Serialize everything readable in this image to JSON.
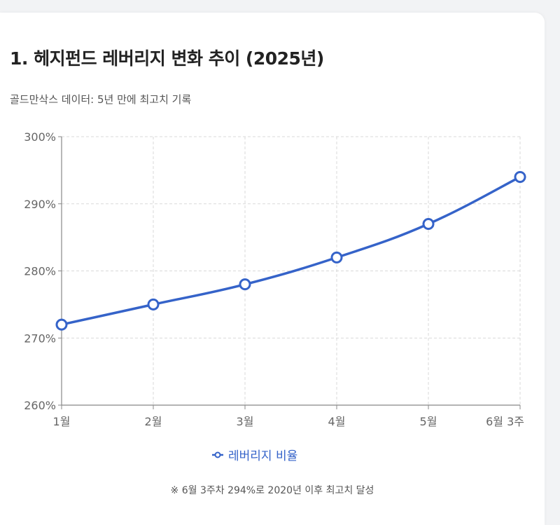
{
  "header": {
    "title": "1. 헤지펀드 레버리지 변화 추이 (2025년)",
    "subtitle": "골드만삭스 데이터: 5년 만에 최고치 기록"
  },
  "footer": {
    "note": "※ 6월 3주차 294%로 2020년 이후 최고치 달성"
  },
  "colors": {
    "series": "#3563c9",
    "grid": "#d9d9d9",
    "axis": "#888888"
  },
  "chart_data": {
    "type": "line",
    "categories": [
      "1월",
      "2월",
      "3월",
      "4월",
      "5월",
      "6월 3주"
    ],
    "series": [
      {
        "name": "레버리지 비율",
        "values": [
          272,
          275,
          278,
          282,
          287,
          294
        ]
      }
    ],
    "ylim": [
      260,
      300
    ],
    "yticks": [
      260,
      270,
      280,
      290,
      300
    ],
    "ytick_labels": [
      "260%",
      "270%",
      "280%",
      "290%",
      "300%"
    ],
    "grid": true,
    "legend_position": "bottom",
    "xlabel": "",
    "ylabel": ""
  }
}
